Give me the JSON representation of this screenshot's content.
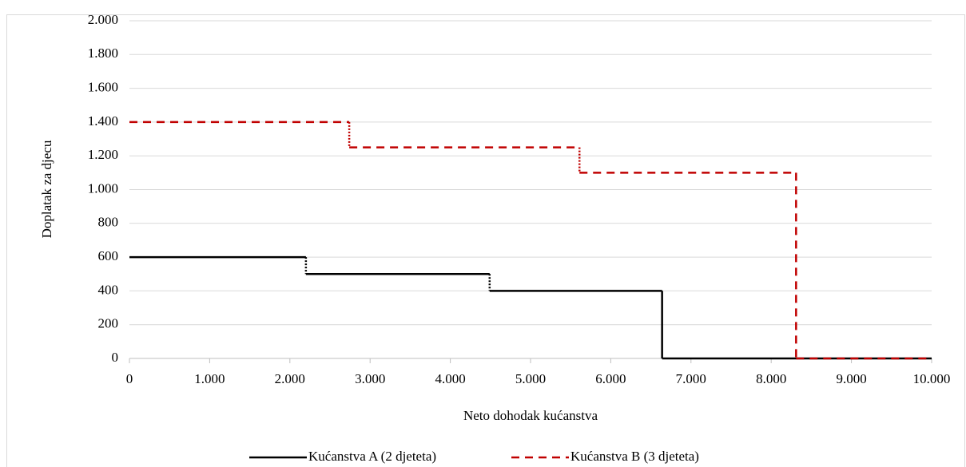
{
  "chart_data": {
    "type": "step",
    "x_label": "Neto dohodak kućanstva",
    "y_label": "Doplatak za djecu",
    "xlim": [
      0,
      10000
    ],
    "xticks": [
      0,
      {
        "value": 1000,
        "label": "1.000"
      },
      {
        "value": 2000,
        "label": "2.000"
      },
      {
        "value": 3000,
        "label": "3.000"
      },
      {
        "value": 4000,
        "label": "4.000"
      },
      {
        "value": 5000,
        "label": "5.000"
      },
      {
        "value": 6000,
        "label": "6.000"
      },
      {
        "value": 7000,
        "label": "7.000"
      },
      {
        "value": 8000,
        "label": "8.000"
      },
      {
        "value": 9000,
        "label": "9.000"
      },
      {
        "value": 10000,
        "label": "10.000"
      }
    ],
    "ylim": [
      0,
      2000
    ],
    "yticks": [
      0,
      200,
      400,
      600,
      800,
      {
        "value": 1000,
        "label": "1.000"
      },
      {
        "value": 1200,
        "label": "1.200"
      },
      {
        "value": 1400,
        "label": "1.400"
      },
      {
        "value": 1600,
        "label": "1.600"
      },
      {
        "value": 1800,
        "label": "1.800"
      },
      {
        "value": 2000,
        "label": "2.000"
      }
    ],
    "grid": true,
    "legend": "bottom",
    "series": [
      {
        "name": "Kućanstva A (2 djeteta)",
        "color": "#000000",
        "dash": "solid",
        "x": [
          0,
          2200,
          4490,
          6640,
          10000
        ],
        "values": [
          600,
          500,
          400,
          0,
          0
        ]
      },
      {
        "name": "Kućanstva B (3 djeteta)",
        "color": "#c00000",
        "dash": "dashed",
        "x": [
          0,
          2740,
          5610,
          8310,
          10000
        ],
        "values": [
          1400,
          1250,
          1100,
          0,
          0
        ]
      }
    ]
  }
}
